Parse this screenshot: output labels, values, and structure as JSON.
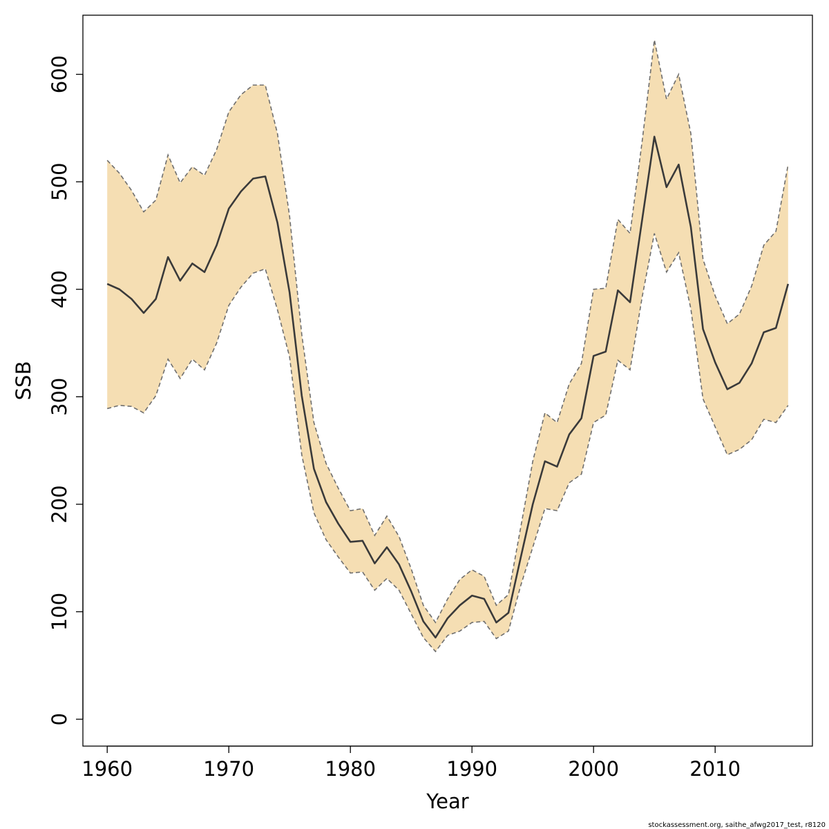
{
  "chart_data": {
    "type": "line",
    "title": "",
    "xlabel": "Year",
    "ylabel": "SSB",
    "xlim": [
      1958,
      2018
    ],
    "ylim": [
      -25,
      655
    ],
    "x_ticks": [
      1960,
      1970,
      1980,
      1990,
      2000,
      2010
    ],
    "y_ticks": [
      0,
      100,
      200,
      300,
      400,
      500,
      600
    ],
    "grid": false,
    "legend": "none",
    "colors": {
      "band_fill": "#F5DEB3",
      "line": "#3a3a3a",
      "bound_line": "#6e6e6e"
    },
    "x": [
      1960,
      1961,
      1962,
      1963,
      1964,
      1965,
      1966,
      1967,
      1968,
      1969,
      1970,
      1971,
      1972,
      1973,
      1974,
      1975,
      1976,
      1977,
      1978,
      1979,
      1980,
      1981,
      1982,
      1983,
      1984,
      1985,
      1986,
      1987,
      1988,
      1989,
      1990,
      1991,
      1992,
      1993,
      1994,
      1995,
      1996,
      1997,
      1998,
      1999,
      2000,
      2001,
      2002,
      2003,
      2004,
      2005,
      2006,
      2007,
      2008,
      2009,
      2010,
      2011,
      2012,
      2013,
      2014,
      2015,
      2016
    ],
    "series": [
      {
        "name": "SSB",
        "values": [
          405,
          400,
          391,
          378,
          391,
          430,
          408,
          424,
          416,
          441,
          475,
          491,
          503,
          505,
          462,
          397,
          301,
          233,
          202,
          182,
          165,
          166,
          145,
          160,
          144,
          119,
          91,
          76,
          94,
          106,
          115,
          112,
          90,
          99,
          150,
          200,
          240,
          235,
          265,
          280,
          338,
          342,
          399,
          388,
          465,
          542,
          495,
          516,
          458,
          363,
          332,
          307,
          313,
          331,
          360,
          364,
          405
        ]
      },
      {
        "name": "upper",
        "values": [
          520,
          508,
          492,
          472,
          483,
          525,
          499,
          514,
          506,
          530,
          565,
          581,
          590,
          590,
          545,
          468,
          358,
          276,
          238,
          215,
          194,
          196,
          171,
          189,
          170,
          140,
          106,
          90,
          112,
          130,
          139,
          133,
          106,
          116,
          178,
          240,
          285,
          276,
          312,
          331,
          400,
          401,
          465,
          452,
          538,
          632,
          577,
          600,
          545,
          428,
          394,
          368,
          377,
          403,
          441,
          454,
          516
        ]
      },
      {
        "name": "lower",
        "values": [
          289,
          292,
          291,
          285,
          301,
          335,
          317,
          335,
          325,
          350,
          385,
          402,
          415,
          419,
          381,
          337,
          246,
          192,
          167,
          151,
          136,
          137,
          120,
          131,
          120,
          98,
          76,
          63,
          78,
          82,
          90,
          91,
          75,
          82,
          124,
          160,
          196,
          194,
          220,
          228,
          276,
          283,
          334,
          325,
          393,
          452,
          416,
          434,
          382,
          298,
          272,
          246,
          251,
          260,
          279,
          276,
          292
        ]
      }
    ],
    "footer_note": "stockassessment.org, saithe_afwg2017_test, r8120"
  }
}
